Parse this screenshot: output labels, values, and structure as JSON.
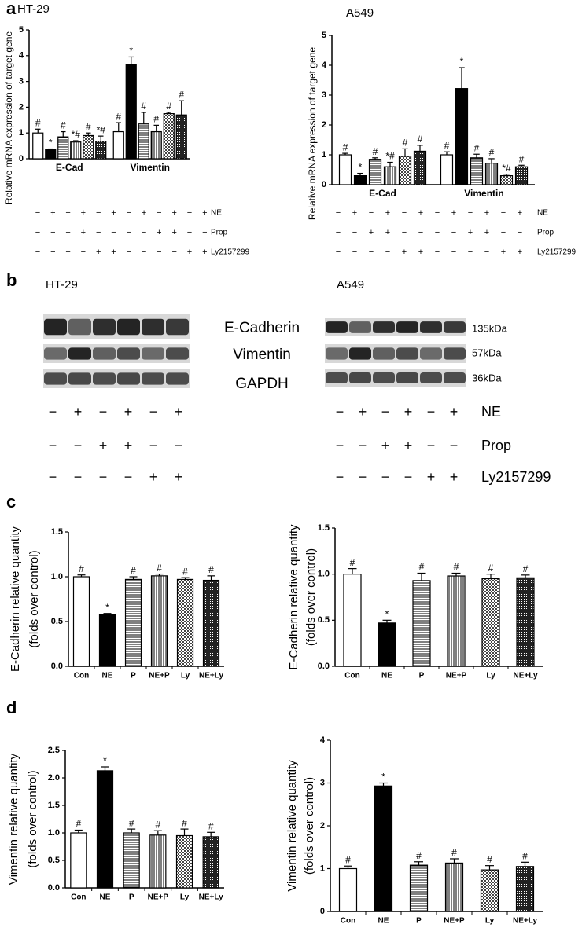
{
  "panel_labels": [
    "a",
    "b",
    "c",
    "d"
  ],
  "chart_data": [
    {
      "type": "bar",
      "title": "HT-29",
      "ylabel": "Relative mRNA expression of target gene",
      "categories": [
        "E-Cad",
        "Vimentin"
      ],
      "series": [
        {
          "pattern": "white",
          "values": [
            1.0,
            1.05
          ],
          "errors": [
            0.15,
            0.35
          ],
          "labels": [
            "#",
            "#"
          ]
        },
        {
          "pattern": "black",
          "values": [
            0.35,
            3.65
          ],
          "errors": [
            0.03,
            0.3
          ],
          "labels": [
            "*",
            "*"
          ]
        },
        {
          "pattern": "hstripe",
          "values": [
            0.85,
            1.35
          ],
          "errors": [
            0.2,
            0.45
          ],
          "labels": [
            "#",
            "#"
          ]
        },
        {
          "pattern": "vstripe",
          "values": [
            0.65,
            1.05
          ],
          "errors": [
            0.05,
            0.25
          ],
          "labels": [
            "*#",
            "#"
          ]
        },
        {
          "pattern": "check",
          "values": [
            0.9,
            1.75
          ],
          "errors": [
            0.1,
            0.05
          ],
          "labels": [
            "#",
            "#"
          ]
        },
        {
          "pattern": "dense",
          "values": [
            0.68,
            1.7
          ],
          "errors": [
            0.2,
            0.55
          ],
          "labels": [
            "*#",
            "#"
          ]
        }
      ],
      "ylim": [
        0,
        5
      ],
      "yticks": [
        0,
        1,
        2,
        3,
        4,
        5
      ],
      "treatments": [
        {
          "name": "NE",
          "signs": [
            "−",
            "+",
            "−",
            "+",
            "−",
            "+",
            "−",
            "+",
            "−",
            "+",
            "−",
            "+"
          ]
        },
        {
          "name": "Prop",
          "signs": [
            "−",
            "−",
            "+",
            "+",
            "−",
            "−",
            "−",
            "−",
            "+",
            "+",
            "−",
            "−"
          ]
        },
        {
          "name": "Ly2157299",
          "signs": [
            "−",
            "−",
            "−",
            "−",
            "+",
            "+",
            "−",
            "−",
            "−",
            "−",
            "+",
            "+"
          ]
        }
      ]
    },
    {
      "type": "bar",
      "title": "A549",
      "ylabel": "Relative mRNA expression of target gene",
      "categories": [
        "E-Cad",
        "Vimentin"
      ],
      "series": [
        {
          "pattern": "white",
          "values": [
            1.0,
            1.0
          ],
          "errors": [
            0.05,
            0.1
          ],
          "labels": [
            "#",
            "#"
          ]
        },
        {
          "pattern": "black",
          "values": [
            0.3,
            3.22
          ],
          "errors": [
            0.08,
            0.7
          ],
          "labels": [
            "*",
            "*"
          ]
        },
        {
          "pattern": "hstripe",
          "values": [
            0.85,
            0.9
          ],
          "errors": [
            0.05,
            0.12
          ],
          "labels": [
            "#",
            "#"
          ]
        },
        {
          "pattern": "vstripe",
          "values": [
            0.6,
            0.72
          ],
          "errors": [
            0.15,
            0.15
          ],
          "labels": [
            "*#",
            "#"
          ]
        },
        {
          "pattern": "check",
          "values": [
            0.95,
            0.3
          ],
          "errors": [
            0.25,
            0.05
          ],
          "labels": [
            "#",
            "*#"
          ]
        },
        {
          "pattern": "dense",
          "values": [
            1.12,
            0.6
          ],
          "errors": [
            0.2,
            0.05
          ],
          "labels": [
            "#",
            "#"
          ]
        }
      ],
      "ylim": [
        0,
        5
      ],
      "yticks": [
        0,
        1,
        2,
        3,
        4,
        5
      ],
      "treatments": [
        {
          "name": "NE",
          "signs": [
            "−",
            "+",
            "−",
            "+",
            "−",
            "+",
            "−",
            "+",
            "−",
            "+",
            "−",
            "+"
          ]
        },
        {
          "name": "Prop",
          "signs": [
            "−",
            "−",
            "+",
            "+",
            "−",
            "−",
            "−",
            "−",
            "+",
            "+",
            "−",
            "−"
          ]
        },
        {
          "name": "Ly2157299",
          "signs": [
            "−",
            "−",
            "−",
            "−",
            "+",
            "+",
            "−",
            "−",
            "−",
            "−",
            "+",
            "+"
          ]
        }
      ]
    },
    {
      "type": "bar",
      "ylabel": [
        "E-Cadherin relative quantity",
        "(folds over control)"
      ],
      "categories": [
        "Con",
        "NE",
        "P",
        "NE+P",
        "Ly",
        "NE+Ly"
      ],
      "values": [
        1.0,
        0.58,
        0.97,
        1.01,
        0.97,
        0.96
      ],
      "errors": [
        0.02,
        0.01,
        0.03,
        0.02,
        0.02,
        0.05
      ],
      "labels": [
        "#",
        "*",
        "#",
        "#",
        "#",
        "#"
      ],
      "patterns": [
        "white",
        "black",
        "hstripe",
        "vstripe",
        "check",
        "dense"
      ],
      "ylim": [
        0,
        1.5
      ],
      "yticks": [
        {
          "value": 0,
          "label": "0.0"
        },
        0.5,
        {
          "value": 1,
          "label": "1.0"
        },
        1.5
      ]
    },
    {
      "type": "bar",
      "ylabel": [
        "E-Cadherin relative quantity",
        "(folds over control)"
      ],
      "categories": [
        "Con",
        "NE",
        "P",
        "NE+P",
        "Ly",
        "NE+Ly"
      ],
      "values": [
        1.0,
        0.47,
        0.93,
        0.98,
        0.95,
        0.96
      ],
      "errors": [
        0.06,
        0.03,
        0.08,
        0.03,
        0.05,
        0.03
      ],
      "labels": [
        "#",
        "*",
        "#",
        "#",
        "#",
        "#"
      ],
      "patterns": [
        "white",
        "black",
        "hstripe",
        "vstripe",
        "check",
        "dense"
      ],
      "ylim": [
        0,
        1.5
      ],
      "yticks": [
        {
          "value": 0,
          "label": "0.0"
        },
        0.5,
        {
          "value": 1,
          "label": "1.0"
        },
        1.5
      ]
    },
    {
      "type": "bar",
      "ylabel": [
        "Vimentin relative quantity",
        "(folds over control)"
      ],
      "categories": [
        "Con",
        "NE",
        "P",
        "NE+P",
        "Ly",
        "NE+Ly"
      ],
      "values": [
        1.0,
        2.13,
        1.0,
        0.96,
        0.95,
        0.93
      ],
      "errors": [
        0.05,
        0.07,
        0.07,
        0.08,
        0.12,
        0.08
      ],
      "labels": [
        "#",
        "*",
        "#",
        "#",
        "#",
        "#"
      ],
      "patterns": [
        "white",
        "black",
        "hstripe",
        "vstripe",
        "check",
        "dense"
      ],
      "ylim": [
        0,
        2.5
      ],
      "yticks": [
        {
          "value": 0,
          "label": "0.0"
        },
        0.5,
        {
          "value": 1,
          "label": "1.0"
        },
        1.5,
        {
          "value": 2,
          "label": "2.0"
        },
        2.5
      ]
    },
    {
      "type": "bar",
      "ylabel": [
        "Vimentin relative quantity",
        "(folds over control)"
      ],
      "categories": [
        "Con",
        "NE",
        "P",
        "NE+P",
        "Ly",
        "NE+Ly"
      ],
      "values": [
        1.0,
        2.93,
        1.08,
        1.13,
        0.97,
        1.05
      ],
      "errors": [
        0.06,
        0.07,
        0.08,
        0.1,
        0.1,
        0.1
      ],
      "labels": [
        "#",
        "*",
        "#",
        "#",
        "#",
        "#"
      ],
      "patterns": [
        "white",
        "black",
        "hstripe",
        "vstripe",
        "check",
        "dense"
      ],
      "ylim": [
        0,
        4
      ],
      "yticks": [
        0,
        1,
        2,
        3,
        4
      ]
    }
  ],
  "blot": {
    "titles": [
      "HT-29",
      "A549"
    ],
    "proteins": [
      "E-Cadherin",
      "Vimentin",
      "GAPDH"
    ],
    "sizes": [
      "135kDa",
      "57kDa",
      "36kDa"
    ],
    "treatments": [
      {
        "name": "NE",
        "signs": [
          "−",
          "+",
          "−",
          "+",
          "−",
          "+"
        ]
      },
      {
        "name": "Prop",
        "signs": [
          "−",
          "−",
          "+",
          "+",
          "−",
          "−"
        ]
      },
      {
        "name": "Ly2157299",
        "signs": [
          "−",
          "−",
          "−",
          "−",
          "+",
          "+"
        ]
      }
    ]
  }
}
